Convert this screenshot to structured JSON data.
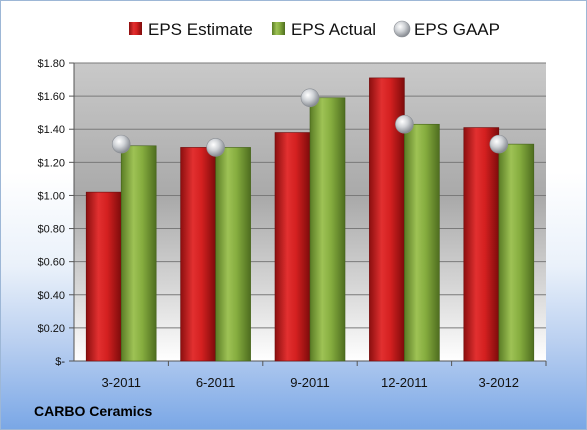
{
  "company": "CARBO Ceramics",
  "colors": {
    "estimate": "#cc1b1b",
    "actual": "#7fa63a",
    "gaap": "#b8bcc2"
  },
  "chart_data": {
    "type": "bar",
    "categories": [
      "3-2011",
      "6-2011",
      "9-2011",
      "12-2011",
      "3-2012"
    ],
    "series": [
      {
        "name": "EPS Estimate",
        "kind": "bar",
        "values": [
          1.02,
          1.29,
          1.38,
          1.71,
          1.41
        ]
      },
      {
        "name": "EPS Actual",
        "kind": "bar",
        "values": [
          1.3,
          1.29,
          1.59,
          1.43,
          1.31
        ]
      },
      {
        "name": "EPS GAAP",
        "kind": "marker",
        "values": [
          1.31,
          1.29,
          1.59,
          1.43,
          1.31
        ]
      }
    ],
    "yticks": [
      "$-",
      "$0.20",
      "$0.40",
      "$0.60",
      "$0.80",
      "$1.00",
      "$1.20",
      "$1.40",
      "$1.60",
      "$1.80"
    ],
    "ylim": [
      0,
      1.8
    ],
    "grid": true,
    "legend": "top"
  }
}
